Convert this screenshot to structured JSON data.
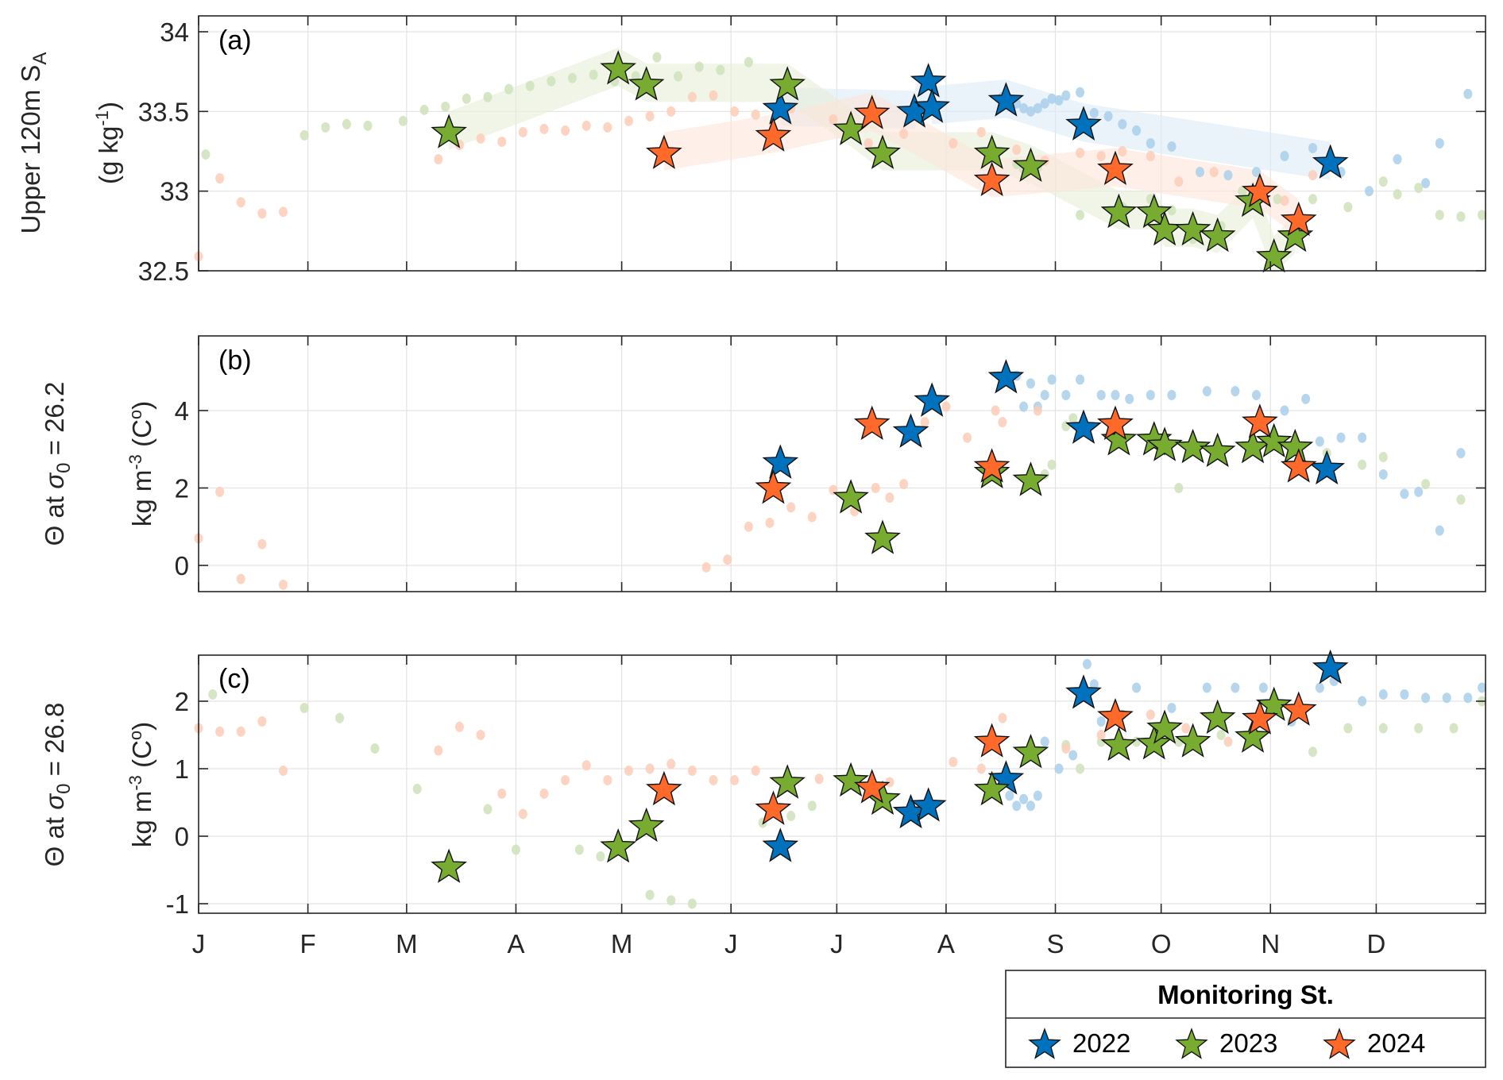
{
  "chart_data": [
    {
      "id": "a",
      "type": "scatter",
      "panel_label": "(a)",
      "ylabel_lines": [
        "Upper 120m S_A",
        "(g kg^-1)"
      ],
      "ylim": [
        32.5,
        34.05
      ],
      "yticks": [
        32.5,
        33,
        33.5,
        34
      ],
      "ytick_labels": [
        "32.5",
        "33",
        "33.5",
        "34"
      ],
      "grid": true,
      "series": [
        {
          "name": "2022",
          "marker": "star",
          "day": [
            165,
            207,
            203,
            208,
            229,
            251,
            321
          ],
          "values": [
            33.53,
            33.7,
            33.51,
            33.54,
            33.58,
            33.43,
            33.19
          ]
        },
        {
          "name": "2023",
          "marker": "star",
          "day": [
            71,
            119,
            127,
            167,
            185,
            194,
            225,
            236,
            261,
            271,
            274,
            282,
            289,
            299,
            305,
            311
          ],
          "values": [
            33.38,
            33.78,
            33.68,
            33.68,
            33.4,
            33.25,
            33.25,
            33.17,
            32.88,
            32.88,
            32.77,
            32.77,
            32.73,
            32.95,
            32.6,
            32.73
          ]
        },
        {
          "name": "2024",
          "marker": "star",
          "day": [
            132,
            163,
            191,
            225,
            260,
            301,
            312
          ],
          "values": [
            33.25,
            33.36,
            33.5,
            33.08,
            33.15,
            33.01,
            32.83
          ]
        }
      ],
      "background_dots": [
        {
          "name": "2022",
          "day": [
            228,
            230,
            232,
            234,
            236,
            238,
            240,
            242,
            244,
            246,
            250,
            254,
            258,
            262,
            266,
            270,
            276,
            284,
            292,
            300,
            308,
            316,
            324,
            332,
            340,
            348,
            352,
            360
          ],
          "values": [
            33.59,
            33.58,
            33.55,
            33.52,
            33.5,
            33.52,
            33.55,
            33.58,
            33.57,
            33.6,
            33.62,
            33.49,
            33.47,
            33.42,
            33.38,
            33.3,
            33.28,
            33.12,
            33.1,
            33.12,
            33.22,
            33.27,
            33.12,
            33.0,
            33.2,
            33.05,
            33.3,
            33.61
          ]
        },
        {
          "name": "2023",
          "day": [
            2,
            30,
            36,
            42,
            48,
            58,
            64,
            70,
            76,
            82,
            88,
            94,
            100,
            106,
            112,
            118,
            124,
            130,
            136,
            142,
            148,
            156,
            232,
            234,
            236,
            238,
            250,
            262,
            270,
            276,
            282,
            290,
            296,
            306,
            316,
            326,
            336,
            340,
            346,
            352,
            358,
            364
          ],
          "values": [
            33.23,
            33.35,
            33.4,
            33.42,
            33.41,
            33.44,
            33.51,
            33.53,
            33.58,
            33.59,
            33.64,
            33.66,
            33.69,
            33.71,
            33.73,
            33.69,
            33.72,
            33.84,
            33.72,
            33.78,
            33.76,
            33.81,
            33.17,
            33.14,
            33.17,
            33.15,
            32.85,
            32.9,
            32.95,
            32.88,
            32.7,
            32.78,
            33.0,
            32.95,
            32.95,
            32.9,
            33.06,
            32.98,
            33.02,
            32.85,
            32.84,
            32.85
          ]
        },
        {
          "name": "2024",
          "day": [
            0,
            6,
            12,
            18,
            24,
            68,
            74,
            80,
            86,
            92,
            98,
            104,
            110,
            116,
            122,
            128,
            134,
            140,
            146,
            152,
            158,
            168,
            180,
            190,
            200,
            214,
            222,
            232,
            240,
            250,
            256,
            262,
            270,
            278,
            288,
            300,
            308,
            316
          ],
          "values": [
            32.59,
            33.08,
            32.93,
            32.86,
            32.87,
            33.2,
            33.29,
            33.33,
            33.31,
            33.37,
            33.39,
            33.38,
            33.41,
            33.4,
            33.44,
            33.47,
            33.5,
            33.59,
            33.6,
            33.5,
            33.48,
            33.52,
            33.45,
            33.3,
            33.36,
            33.3,
            33.37,
            33.26,
            33.19,
            33.24,
            33.22,
            33.25,
            33.22,
            33.06,
            33.12,
            33.0,
            32.94,
            33.1
          ]
        }
      ]
    },
    {
      "id": "b",
      "type": "scatter",
      "panel_label": "(b)",
      "ylabel_lines": [
        "Θ at σ₀ = 26.2",
        "kg m^-3 (C°)"
      ],
      "ylim": [
        -0.6,
        5.9
      ],
      "yticks": [
        0,
        2,
        4
      ],
      "ytick_labels": [
        "0",
        "2",
        "4"
      ],
      "grid": true,
      "series": [
        {
          "name": "2022",
          "marker": "star",
          "day": [
            165,
            202,
            208,
            229,
            251,
            320
          ],
          "values": [
            2.7,
            3.5,
            4.3,
            4.9,
            3.6,
            2.55
          ]
        },
        {
          "name": "2023",
          "marker": "star",
          "day": [
            185,
            194,
            225,
            236,
            261,
            271,
            274,
            282,
            289,
            299,
            305,
            311
          ],
          "values": [
            1.8,
            0.75,
            2.45,
            2.25,
            3.3,
            3.3,
            3.15,
            3.1,
            3.0,
            3.1,
            3.25,
            3.1
          ]
        },
        {
          "name": "2024",
          "marker": "star",
          "day": [
            163,
            191,
            225,
            260,
            301,
            312
          ],
          "values": [
            2.05,
            3.7,
            2.6,
            3.7,
            3.75,
            2.6
          ]
        }
      ],
      "background_dots": [
        {
          "name": "2022",
          "day": [
            232,
            234,
            236,
            238,
            240,
            242,
            246,
            250,
            256,
            260,
            264,
            270,
            276,
            286,
            294,
            300,
            308,
            314,
            318,
            324,
            330,
            336,
            342,
            346,
            352,
            358
          ],
          "values": [
            4.9,
            4.1,
            4.7,
            4.1,
            4.4,
            4.8,
            4.4,
            4.8,
            4.4,
            4.4,
            4.3,
            4.4,
            4.4,
            4.5,
            4.5,
            4.4,
            4.0,
            4.3,
            3.2,
            3.3,
            3.3,
            2.35,
            1.85,
            1.9,
            0.9,
            2.9
          ]
        },
        {
          "name": "2023",
          "day": [
            236,
            240,
            242,
            246,
            248,
            278,
            320,
            330,
            336,
            348,
            358
          ],
          "values": [
            2.3,
            2.35,
            2.6,
            3.6,
            3.8,
            2.0,
            2.9,
            2.6,
            2.8,
            2.1,
            1.7
          ]
        },
        {
          "name": "2024",
          "day": [
            0,
            6,
            12,
            18,
            24,
            144,
            150,
            156,
            162,
            168,
            174,
            180,
            186,
            192,
            196,
            200,
            206,
            212,
            218,
            226,
            228,
            238
          ],
          "values": [
            0.7,
            1.9,
            -0.35,
            0.55,
            -0.5,
            -0.05,
            0.15,
            1.0,
            1.1,
            1.5,
            1.25,
            1.95,
            1.4,
            2.0,
            1.75,
            2.1,
            3.7,
            4.1,
            3.3,
            4.0,
            3.7,
            4.0
          ]
        }
      ]
    },
    {
      "id": "c",
      "type": "scatter",
      "panel_label": "(c)",
      "ylabel_lines": [
        "Θ at σ₀ = 26.8",
        "kg m^-3 (C°)"
      ],
      "ylim": [
        -1.1,
        2.7
      ],
      "yticks": [
        -1,
        0,
        1,
        2
      ],
      "ytick_labels": [
        "-1",
        "0",
        "1",
        "2"
      ],
      "grid": true,
      "series": [
        {
          "name": "2022",
          "marker": "star",
          "day": [
            165,
            202,
            207,
            229,
            251,
            321
          ],
          "values": [
            -0.12,
            0.38,
            0.48,
            0.88,
            2.15,
            2.52
          ]
        },
        {
          "name": "2023",
          "marker": "star",
          "day": [
            71,
            119,
            127,
            167,
            185,
            194,
            225,
            236,
            261,
            271,
            274,
            282,
            289,
            299,
            305
          ],
          "values": [
            -0.43,
            -0.13,
            0.18,
            0.82,
            0.85,
            0.58,
            0.72,
            1.27,
            1.38,
            1.4,
            1.63,
            1.43,
            1.78,
            1.5,
            1.97
          ]
        },
        {
          "name": "2024",
          "day": [
            132,
            163,
            191,
            225,
            260,
            301,
            312
          ],
          "marker": "star",
          "values": [
            0.72,
            0.43,
            0.75,
            1.43,
            1.8,
            1.77,
            1.9
          ]
        }
      ],
      "background_dots": [
        {
          "name": "2022",
          "day": [
            230,
            232,
            234,
            236,
            238,
            240,
            244,
            248,
            252,
            254,
            256,
            262,
            266,
            276,
            286,
            294,
            302,
            310,
            318,
            322,
            330,
            336,
            342,
            348,
            354,
            360,
            364
          ],
          "values": [
            0.6,
            0.45,
            0.55,
            0.45,
            0.6,
            1.4,
            1.0,
            1.2,
            2.55,
            2.25,
            1.7,
            1.8,
            2.2,
            1.9,
            2.2,
            2.2,
            2.2,
            1.7,
            2.2,
            2.3,
            2.0,
            2.1,
            2.1,
            2.05,
            2.05,
            2.05,
            2.2
          ]
        },
        {
          "name": "2023",
          "day": [
            4,
            30,
            40,
            50,
            62,
            82,
            90,
            108,
            114,
            120,
            128,
            134,
            140,
            160,
            168,
            174,
            246,
            250,
            256,
            266,
            278,
            290,
            300,
            316,
            326,
            336,
            346,
            356,
            364
          ],
          "values": [
            2.1,
            1.9,
            1.75,
            1.3,
            0.7,
            0.4,
            -0.2,
            -0.2,
            -0.3,
            -0.2,
            -0.87,
            -0.95,
            -1.0,
            0.2,
            0.3,
            0.45,
            1.35,
            1.0,
            1.4,
            1.4,
            1.4,
            1.5,
            1.5,
            1.25,
            1.6,
            1.6,
            1.6,
            1.6,
            2.0
          ]
        },
        {
          "name": "2024",
          "day": [
            0,
            6,
            12,
            18,
            24,
            68,
            74,
            80,
            86,
            92,
            98,
            104,
            110,
            116,
            122,
            128,
            134,
            140,
            146,
            152,
            158,
            168,
            176,
            186,
            196,
            214,
            222,
            228,
            246,
            256,
            262,
            270,
            280,
            292,
            300
          ],
          "values": [
            1.6,
            1.55,
            1.55,
            1.7,
            0.97,
            1.27,
            1.62,
            1.5,
            0.63,
            0.33,
            0.63,
            0.83,
            1.05,
            0.83,
            0.97,
            1.0,
            1.07,
            0.97,
            0.83,
            0.83,
            0.97,
            0.8,
            0.85,
            0.82,
            0.8,
            1.1,
            1.0,
            1.75,
            1.3,
            1.5,
            1.4,
            1.8,
            1.6,
            1.4,
            1.5
          ]
        }
      ]
    }
  ],
  "xaxis": {
    "day_range": [
      0,
      365
    ],
    "month_starts": [
      0,
      31,
      59,
      90,
      120,
      151,
      181,
      212,
      243,
      273,
      304,
      334
    ],
    "month_labels": [
      "J",
      "F",
      "M",
      "A",
      "M",
      "J",
      "J",
      "A",
      "S",
      "O",
      "N",
      "D"
    ]
  },
  "colors": {
    "2022": "#0072BD",
    "2023": "#77AC30",
    "2024": "#FF6929",
    "2022_light": "#A9CFEA",
    "2023_light": "#CFE2BB",
    "2024_light": "#FDCDB7",
    "2022_band": "#DCEAF7",
    "2023_band": "#E6EFD9",
    "2024_band": "#FDE4D8"
  },
  "legend": {
    "title": "Monitoring St.",
    "entries": [
      "2022",
      "2023",
      "2024"
    ],
    "placement": "bottom-right"
  }
}
